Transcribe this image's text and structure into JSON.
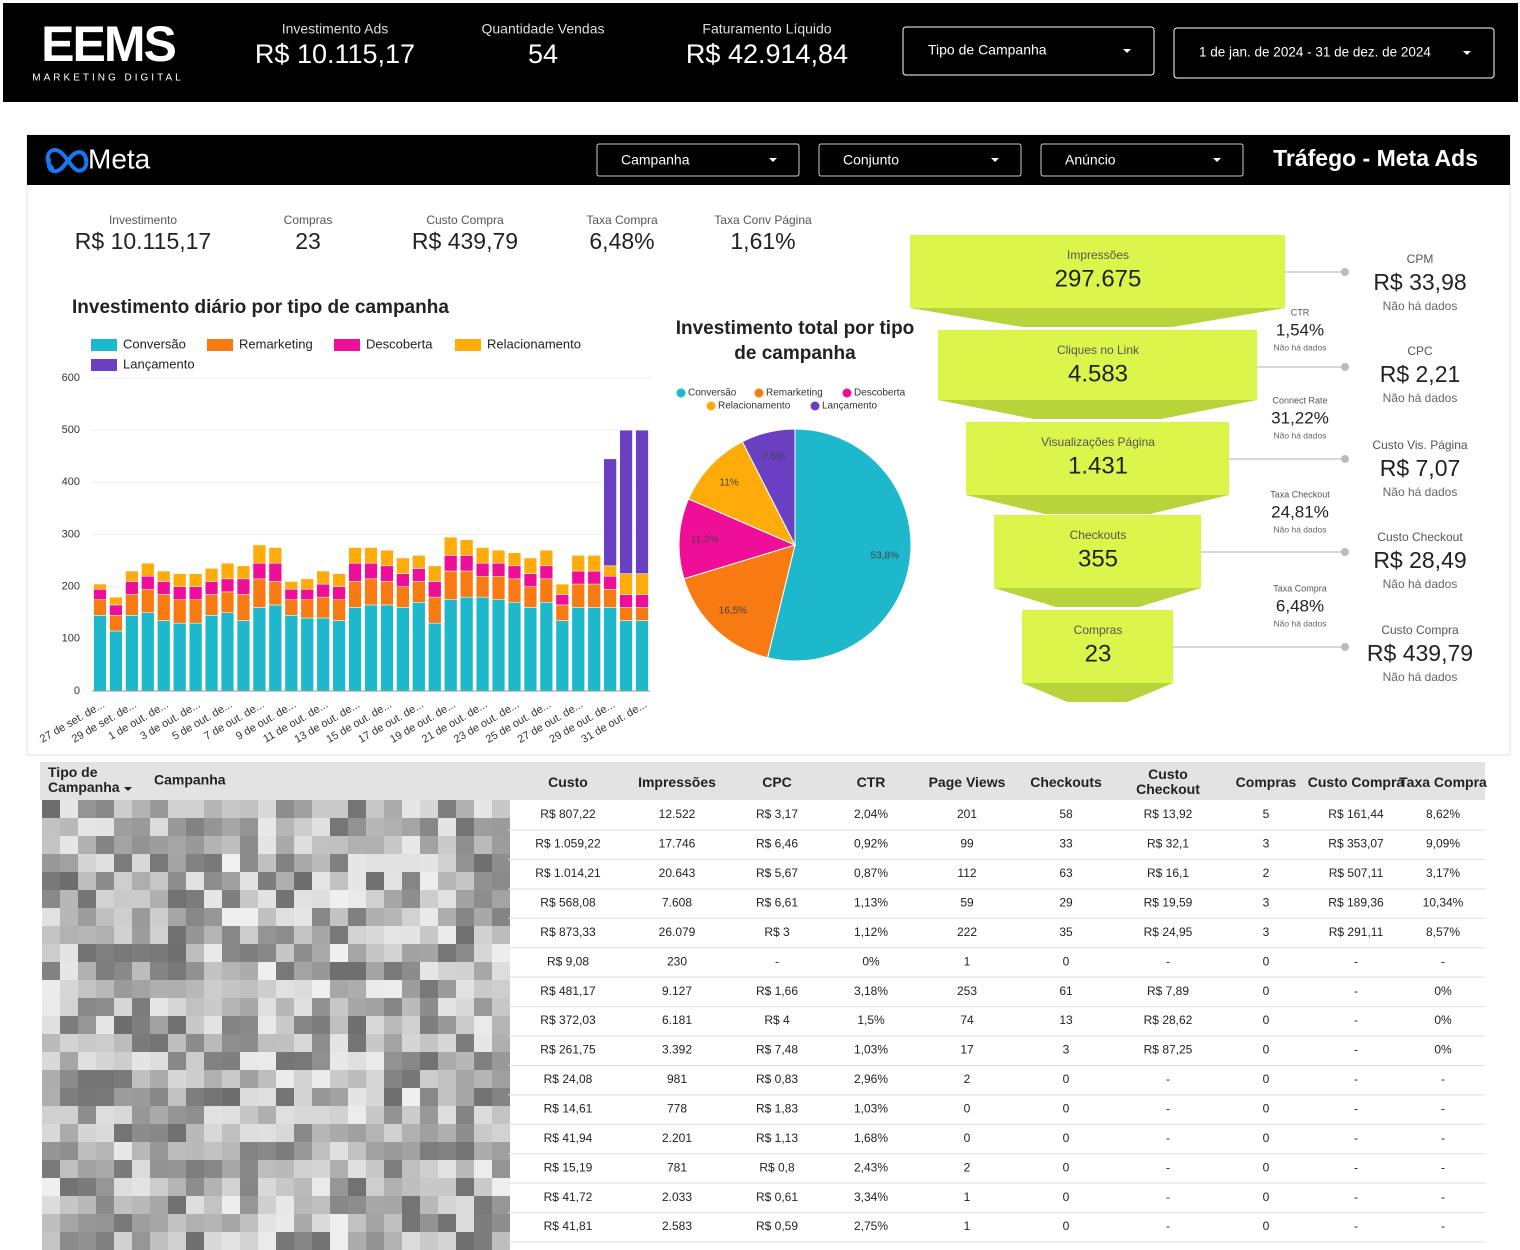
{
  "header": {
    "logo": "EEMS",
    "logo_sub": "MARKETING DIGITAL",
    "kpis": [
      {
        "label": "Investimento Ads",
        "value": "R$ 10.115,17"
      },
      {
        "label": "Quantidade Vendas",
        "value": "54"
      },
      {
        "label": "Faturamento Líquido",
        "value": "R$ 42.914,84"
      }
    ],
    "filters": [
      "Tipo de Campanha",
      "1 de jan. de 2024 - 31 de dez. de 2024"
    ]
  },
  "panel": {
    "brand": "Meta",
    "filters": [
      "Campanha",
      "Conjunto",
      "Anúncio"
    ],
    "title": "Tráfego - Meta Ads",
    "kpis": [
      {
        "label": "Investimento",
        "value": "R$ 10.115,17"
      },
      {
        "label": "Compras",
        "value": "23"
      },
      {
        "label": "Custo Compra",
        "value": "R$ 439,79"
      },
      {
        "label": "Taxa Compra",
        "value": "6,48%"
      },
      {
        "label": "Taxa Conv Página",
        "value": "1,61%"
      }
    ]
  },
  "chart_data": [
    {
      "type": "stacked_bar",
      "title": "Investimento diário por tipo de campanha",
      "categories": [
        "27 de set. de...",
        null,
        "29 de set. de...",
        null,
        "1 de out. de...",
        null,
        "3 de out. de...",
        null,
        "5 de out. de...",
        null,
        "7 de out. de...",
        null,
        "9 de out. de...",
        null,
        "11 de out. de...",
        null,
        "13 de out. de...",
        null,
        "15 de out. de...",
        null,
        "17 de out. de...",
        null,
        "19 de out. de...",
        null,
        "21 de out. de...",
        null,
        "23 de out. de...",
        null,
        "25 de out. de...",
        null,
        "27 de out. de...",
        null,
        "29 de out. de...",
        null,
        "31 de out. de..."
      ],
      "series": [
        {
          "name": "Conversão",
          "color": "#1db8cc",
          "values": [
            145,
            115,
            145,
            150,
            135,
            130,
            130,
            145,
            150,
            135,
            160,
            165,
            145,
            140,
            140,
            135,
            160,
            165,
            165,
            160,
            170,
            130,
            175,
            180,
            180,
            175,
            170,
            160,
            170,
            135,
            160,
            160,
            160,
            135,
            135
          ]
        },
        {
          "name": "Remarketing",
          "color": "#f77b12",
          "values": [
            30,
            30,
            40,
            45,
            50,
            45,
            45,
            40,
            40,
            50,
            55,
            45,
            30,
            35,
            40,
            40,
            50,
            50,
            45,
            40,
            40,
            50,
            55,
            50,
            40,
            45,
            45,
            40,
            45,
            30,
            45,
            45,
            35,
            25,
            25
          ]
        },
        {
          "name": "Descoberta",
          "color": "#ee0e97",
          "values": [
            20,
            20,
            25,
            25,
            25,
            25,
            25,
            25,
            25,
            30,
            30,
            35,
            20,
            20,
            25,
            25,
            35,
            30,
            30,
            25,
            25,
            30,
            30,
            30,
            25,
            25,
            25,
            25,
            25,
            20,
            25,
            25,
            25,
            25,
            25
          ]
        },
        {
          "name": "Relacionamento",
          "color": "#ffac0a",
          "values": [
            10,
            15,
            20,
            25,
            20,
            25,
            25,
            25,
            30,
            25,
            35,
            30,
            15,
            20,
            25,
            25,
            30,
            30,
            30,
            30,
            25,
            30,
            35,
            30,
            30,
            25,
            25,
            30,
            30,
            20,
            30,
            30,
            20,
            40,
            40
          ]
        },
        {
          "name": "Lançamento",
          "color": "#6a3fc1",
          "values": [
            0,
            0,
            0,
            0,
            0,
            0,
            0,
            0,
            0,
            0,
            0,
            0,
            0,
            0,
            0,
            0,
            0,
            0,
            0,
            0,
            0,
            0,
            0,
            0,
            0,
            0,
            0,
            0,
            0,
            0,
            0,
            0,
            205,
            275,
            275
          ]
        }
      ],
      "ylim": [
        0,
        600
      ],
      "yticks": [
        0,
        100,
        200,
        300,
        400,
        500,
        600
      ],
      "grid": true,
      "legend": "top"
    },
    {
      "type": "pie",
      "title": "Investimento total por tipo de campanha",
      "categories": [
        "Conversão",
        "Remarketing",
        "Descoberta",
        "Relacionamento",
        "Lançamento"
      ],
      "values": [
        53.8,
        16.5,
        11.2,
        11,
        7.5
      ],
      "value_labels": [
        "53,8%",
        "16,5%",
        "11,2%",
        "11%",
        "7,5%"
      ],
      "colors": [
        "#1db8cc",
        "#f77b12",
        "#ee0e97",
        "#ffac0a",
        "#6a3fc1"
      ],
      "legend": "top"
    }
  ],
  "funnel": {
    "stages": [
      {
        "label": "Impressões",
        "value": "297.675"
      },
      {
        "label": "Cliques no Link",
        "value": "4.583"
      },
      {
        "label": "Visualizações Página",
        "value": "1.431"
      },
      {
        "label": "Checkouts",
        "value": "355"
      },
      {
        "label": "Compras",
        "value": "23"
      }
    ],
    "rates": [
      {
        "label": "CTR",
        "value": "1,54%",
        "note": "Não há dados"
      },
      {
        "label": "Connect Rate",
        "value": "31,22%",
        "note": "Não há dados"
      },
      {
        "label": "Taxa Checkout",
        "value": "24,81%",
        "note": "Não há dados"
      },
      {
        "label": "Taxa Compra",
        "value": "6,48%",
        "note": "Não há dados"
      }
    ],
    "costs": [
      {
        "label": "CPM",
        "value": "R$ 33,98",
        "note": "Não há dados"
      },
      {
        "label": "CPC",
        "value": "R$ 2,21",
        "note": "Não há dados"
      },
      {
        "label": "Custo Vis. Página",
        "value": "R$ 7,07",
        "note": "Não há dados"
      },
      {
        "label": "Custo Checkout",
        "value": "R$ 28,49",
        "note": "Não há dados"
      },
      {
        "label": "Custo Compra",
        "value": "R$ 439,79",
        "note": "Não há dados"
      }
    ]
  },
  "table": {
    "columns": [
      "Tipo de Campanha",
      "Campanha",
      "Custo",
      "Impressões",
      "CPC",
      "CTR",
      "Page Views",
      "Checkouts",
      "Custo Checkout",
      "Compras",
      "Custo Compra",
      "Taxa Compra"
    ],
    "rows": [
      [
        "R$ 807,22",
        "12.522",
        "R$ 3,17",
        "2,04%",
        "201",
        "58",
        "R$ 13,92",
        "5",
        "R$ 161,44",
        "8,62%"
      ],
      [
        "R$ 1.059,22",
        "17.746",
        "R$ 6,46",
        "0,92%",
        "99",
        "33",
        "R$ 32,1",
        "3",
        "R$ 353,07",
        "9,09%"
      ],
      [
        "R$ 1.014,21",
        "20.643",
        "R$ 5,67",
        "0,87%",
        "112",
        "63",
        "R$ 16,1",
        "2",
        "R$ 507,11",
        "3,17%"
      ],
      [
        "R$ 568,08",
        "7.608",
        "R$ 6,61",
        "1,13%",
        "59",
        "29",
        "R$ 19,59",
        "3",
        "R$ 189,36",
        "10,34%"
      ],
      [
        "R$ 873,33",
        "26.079",
        "R$ 3",
        "1,12%",
        "222",
        "35",
        "R$ 24,95",
        "3",
        "R$ 291,11",
        "8,57%"
      ],
      [
        "R$ 9,08",
        "230",
        "-",
        "0%",
        "1",
        "0",
        "-",
        "0",
        "-",
        "-"
      ],
      [
        "R$ 481,17",
        "9.127",
        "R$ 1,66",
        "3,18%",
        "253",
        "61",
        "R$ 7,89",
        "0",
        "-",
        "0%"
      ],
      [
        "R$ 372,03",
        "6.181",
        "R$ 4",
        "1,5%",
        "74",
        "13",
        "R$ 28,62",
        "0",
        "-",
        "0%"
      ],
      [
        "R$ 261,75",
        "3.392",
        "R$ 7,48",
        "1,03%",
        "17",
        "3",
        "R$ 87,25",
        "0",
        "-",
        "0%"
      ],
      [
        "R$ 24,08",
        "981",
        "R$ 0,83",
        "2,96%",
        "2",
        "0",
        "-",
        "0",
        "-",
        "-"
      ],
      [
        "R$ 14,61",
        "778",
        "R$ 1,83",
        "1,03%",
        "0",
        "0",
        "-",
        "0",
        "-",
        "-"
      ],
      [
        "R$ 41,94",
        "2.201",
        "R$ 1,13",
        "1,68%",
        "0",
        "0",
        "-",
        "0",
        "-",
        "-"
      ],
      [
        "R$ 15,19",
        "781",
        "R$ 0,8",
        "2,43%",
        "2",
        "0",
        "-",
        "0",
        "-",
        "-"
      ],
      [
        "R$ 41,72",
        "2.033",
        "R$ 0,61",
        "3,34%",
        "1",
        "0",
        "-",
        "0",
        "-",
        "-"
      ],
      [
        "R$ 41,81",
        "2.583",
        "R$ 0,59",
        "2,75%",
        "1",
        "0",
        "-",
        "0",
        "-",
        "-"
      ]
    ]
  }
}
